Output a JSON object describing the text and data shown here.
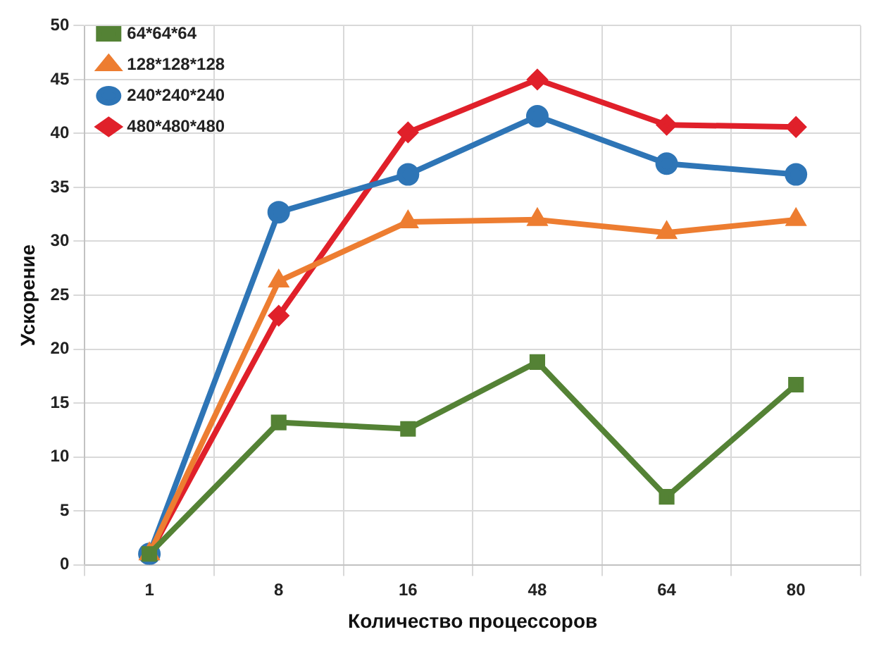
{
  "chart_data": {
    "type": "line",
    "xlabel": "Количество процессоров",
    "ylabel": "Ускорение",
    "categories": [
      "1",
      "8",
      "16",
      "48",
      "64",
      "80"
    ],
    "series": [
      {
        "name": "64*64*64",
        "color": "#548235",
        "marker": "square",
        "values": [
          1,
          13.2,
          12.6,
          18.8,
          6.3,
          16.7
        ]
      },
      {
        "name": "128*128*128",
        "color": "#ed7d31",
        "marker": "triangle",
        "values": [
          1,
          26.3,
          31.8,
          32,
          30.8,
          32
        ]
      },
      {
        "name": "240*240*240",
        "color": "#2e75b6",
        "marker": "circle",
        "values": [
          1,
          32.7,
          36.2,
          41.6,
          37.2,
          36.2
        ]
      },
      {
        "name": "480*480*480",
        "color": "#e0202a",
        "marker": "diamond",
        "values": [
          1,
          23.1,
          40.1,
          45,
          40.8,
          40.6
        ]
      }
    ],
    "ylim": [
      0,
      50
    ],
    "yticks": [
      0,
      5,
      10,
      15,
      20,
      25,
      30,
      35,
      40,
      45,
      50
    ],
    "grid": true,
    "legend": "top left",
    "line_style": "solid"
  }
}
